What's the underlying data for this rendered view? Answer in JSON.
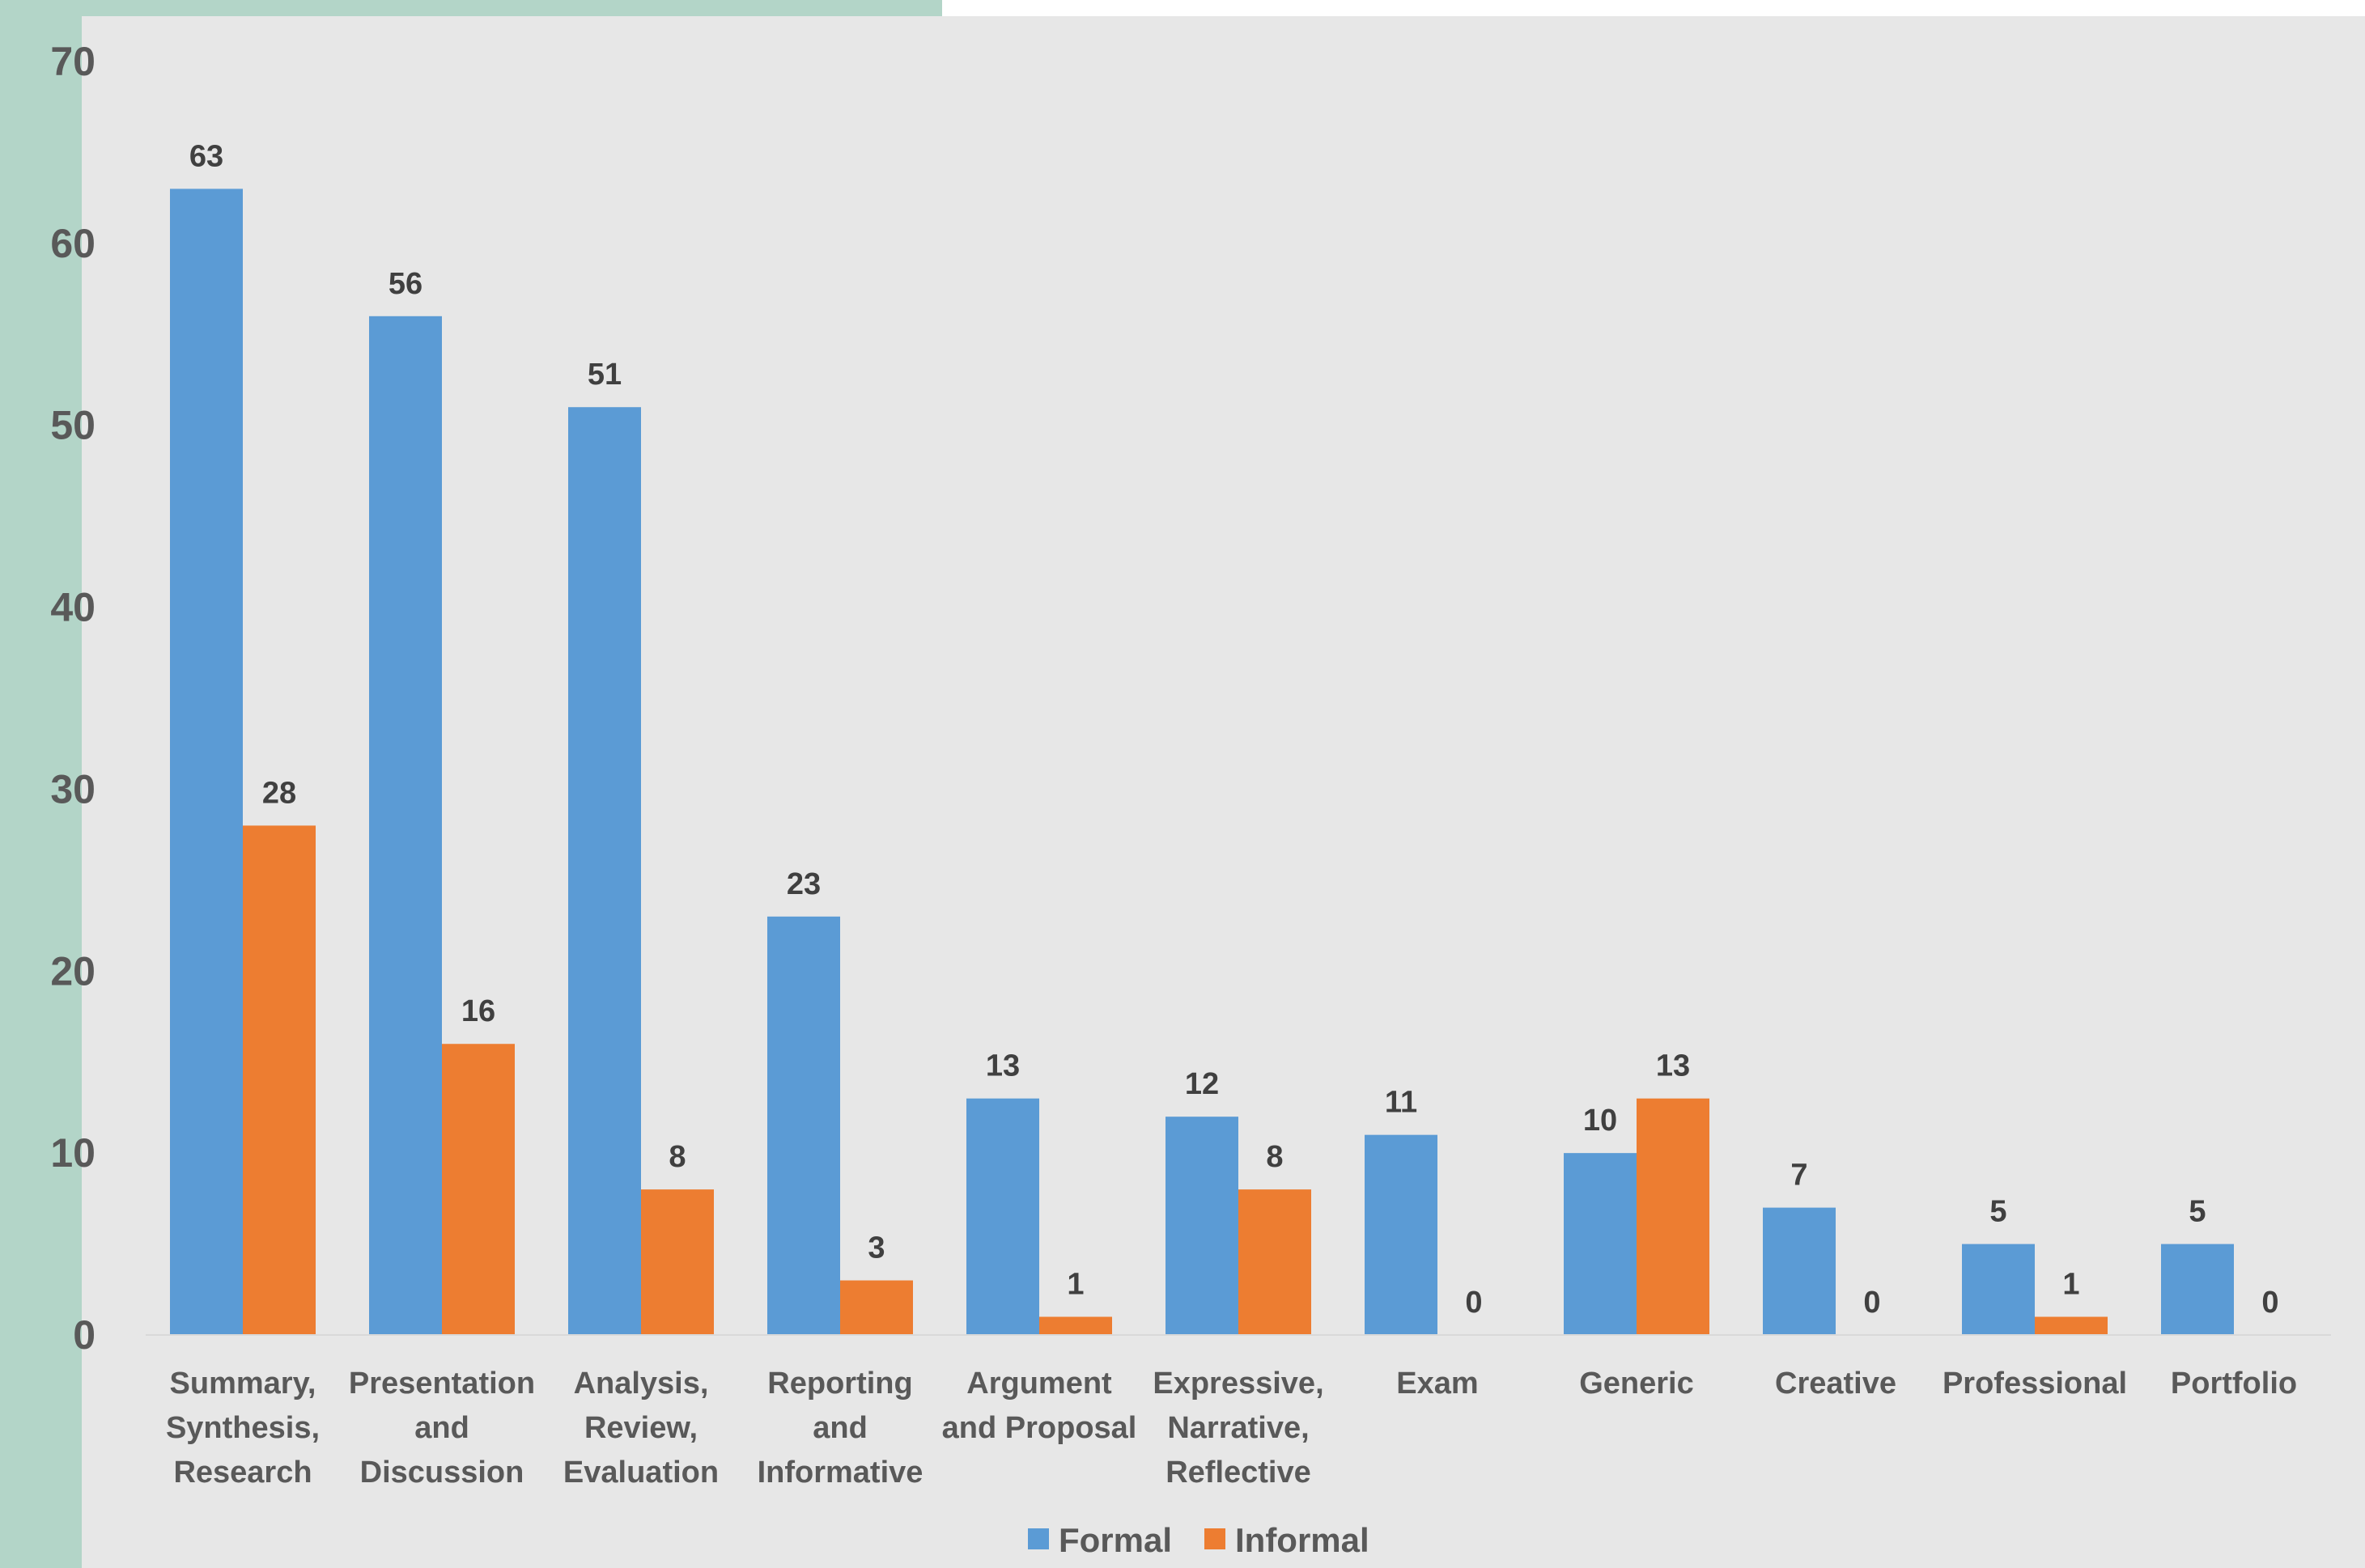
{
  "chart_data": {
    "type": "bar",
    "title": "",
    "xlabel": "",
    "ylabel": "",
    "ylim": [
      0,
      70
    ],
    "yticks": [
      0,
      10,
      20,
      30,
      40,
      50,
      60,
      70
    ],
    "grid": false,
    "legend_position": "bottom",
    "categories": [
      [
        "Summary,",
        "Synthesis,",
        "Research"
      ],
      [
        "Presentation",
        "and",
        "Discussion"
      ],
      [
        "Analysis,",
        "Review,",
        "Evaluation"
      ],
      [
        "Reporting",
        "and",
        "Informative"
      ],
      [
        "Argument",
        "and Proposal"
      ],
      [
        "Expressive,",
        "Narrative,",
        "Reflective"
      ],
      [
        "Exam"
      ],
      [
        "Generic"
      ],
      [
        "Creative"
      ],
      [
        "Professional"
      ],
      [
        "Portfolio"
      ]
    ],
    "series": [
      {
        "name": "Formal",
        "color": "#5b9bd5",
        "values": [
          63,
          56,
          51,
          23,
          13,
          12,
          11,
          10,
          7,
          5,
          5
        ]
      },
      {
        "name": "Informal",
        "color": "#ed7d31",
        "values": [
          28,
          16,
          8,
          3,
          1,
          8,
          0,
          13,
          0,
          1,
          0
        ]
      }
    ]
  }
}
